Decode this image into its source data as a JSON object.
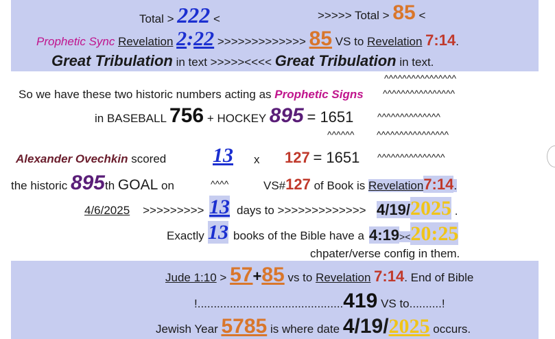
{
  "top": {
    "total_label_1": "Total >",
    "n222": "222",
    "lt1": "<",
    "arrows_total": ">>>>>  Total >",
    "n85": "85",
    "lt2": "<",
    "prophetic_sync": "Prophetic Sync",
    "revelation": "Revelation",
    "n2_22_a": "2",
    "n2_22_b": "22",
    "arrows_long": ">>>>>>>>>>>>>",
    "n85b": "85",
    "vs_to": "VS to",
    "revelation2": "Revelation",
    "ref_7_14": "7:14",
    "period": ".",
    "great_trib_1": "Great Tribulation",
    "in_text_1": "in text >>>>><<<<",
    "great_trib_2": "Great Tribulation",
    "in_text_2": "in text."
  },
  "middle": {
    "carets_1": "^^^^^^^^^^^^^^^^",
    "so_we_have": "So we have these two historic numbers acting as",
    "prophetic_signs": "Prophetic Signs",
    "carets_2": "^^^^^^^^^^^^^^^^",
    "in_baseball": "in BASEBALL",
    "n756": "756",
    "plus_hockey": "+ HOCKEY",
    "n895": "895",
    "eq_1651": "=  1651",
    "carets_3": "^^^^^^^^^^^^^^",
    "carets_4a": "^^^^^^",
    "carets_4b": "^^^^^^^^^^^^^^^^",
    "ovechkin": "Alexander Ovechkin",
    "scored": "scored",
    "n13a": "13",
    "x": "x",
    "n127a": "127",
    "eq_1651b": "=  1651",
    "carets_5": "^^^^^^^^^^^^^^^",
    "the_historic": "the historic",
    "n895b": "895",
    "th": "th",
    "goal_on": "GOAL",
    "on": "on",
    "carets_6": "^^^^",
    "vs_hash": "VS#",
    "n127b": "127",
    "of_book_is": "of Book is",
    "revelation3": "Revelation",
    "ref_7_14b": "7:14",
    "period2": ".",
    "date": "4/6/2025",
    "arrows_date": ">>>>>>>>>",
    "n13b": "13",
    "days_to": "days to >>>>>>>>>>>>>",
    "d4": "4",
    "d19": "/19/",
    "d2025": "2025",
    "period3": ".",
    "exactly": "Exactly",
    "n13c": "13",
    "books_text": "books of the Bible have a",
    "c4": "4",
    "c19": ":19",
    "cgt": "><",
    "c20": "20",
    "c25": "25",
    "config": "chpater/verse config in them."
  },
  "bottom": {
    "jude": "Jude 1:10",
    "gt": ">",
    "n57": "57",
    "plus": "+",
    "n85c": "85",
    "vs_to": "vs to",
    "revelation4": "Revelation",
    "ref_7_14c": "7:14",
    "end_of_bible": ".   End of Bible",
    "dots_pre": "!.............................................",
    "n419": "419",
    "vs_to_dots": "VS to..........!",
    "jewish_year": "Jewish Year",
    "n5785": "5785",
    "where_date": "is where date",
    "b4": "4",
    "b19": "/19/",
    "b2025": "2025",
    "occurs": "occurs."
  }
}
